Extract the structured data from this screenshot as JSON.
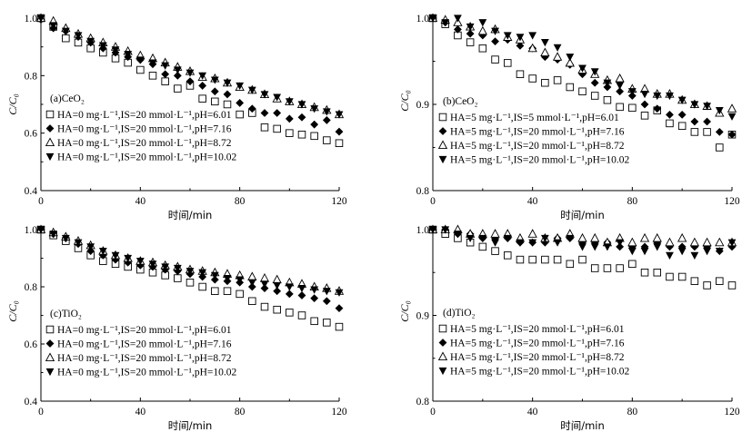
{
  "chart_data": [
    {
      "type": "scatter",
      "panel_label": "(a)CeO₂",
      "xlabel": "时间/min",
      "ylabel": "C/C₀",
      "xlim": [
        0,
        120
      ],
      "ylim": [
        0.4,
        1.0
      ],
      "xticks": [
        0,
        40,
        80,
        120
      ],
      "yticks": [
        0.4,
        0.6,
        0.8,
        1.0
      ],
      "ytick_labels": [
        "0.4",
        "0.6",
        "0.8",
        "1.0"
      ],
      "x": [
        0,
        5,
        10,
        15,
        20,
        25,
        30,
        35,
        40,
        45,
        50,
        55,
        60,
        65,
        70,
        75,
        80,
        85,
        90,
        95,
        100,
        105,
        110,
        115,
        120
      ],
      "series": [
        {
          "name": "HA=0 mg·L⁻¹,IS=20 mmol·L⁻¹,pH=6.01",
          "marker": "square-open",
          "values": [
            1.0,
            0.97,
            0.93,
            0.915,
            0.895,
            0.88,
            0.86,
            0.845,
            0.82,
            0.8,
            0.78,
            0.755,
            0.765,
            0.72,
            0.71,
            0.7,
            0.665,
            0.67,
            0.62,
            0.615,
            0.6,
            0.595,
            0.59,
            0.575,
            0.565
          ]
        },
        {
          "name": "HA=0 mg·L⁻¹,IS=20 mmol·L⁻¹,pH=7.16",
          "marker": "diamond-filled",
          "values": [
            0.995,
            0.965,
            0.955,
            0.935,
            0.915,
            0.895,
            0.88,
            0.865,
            0.855,
            0.84,
            0.805,
            0.8,
            0.78,
            0.765,
            0.745,
            0.735,
            0.705,
            0.685,
            0.67,
            0.67,
            0.65,
            0.655,
            0.63,
            0.645,
            0.605
          ]
        },
        {
          "name": "HA=0 mg·L⁻¹,IS=20 mmol·L⁻¹,pH=8.72",
          "marker": "triangle-up-open",
          "values": [
            1.0,
            0.99,
            0.965,
            0.945,
            0.93,
            0.915,
            0.9,
            0.885,
            0.87,
            0.86,
            0.845,
            0.83,
            0.815,
            0.795,
            0.79,
            0.775,
            0.76,
            0.75,
            0.735,
            0.72,
            0.71,
            0.7,
            0.69,
            0.68,
            0.665
          ]
        },
        {
          "name": "HA=0 mg·L⁻¹,IS=20 mmol·L⁻¹,pH=10.02",
          "marker": "triangle-down-filled",
          "values": [
            1.0,
            0.975,
            0.955,
            0.94,
            0.92,
            0.905,
            0.89,
            0.875,
            0.855,
            0.845,
            0.835,
            0.82,
            0.81,
            0.8,
            0.785,
            0.775,
            0.765,
            0.75,
            0.735,
            0.725,
            0.71,
            0.7,
            0.685,
            0.675,
            0.665
          ]
        }
      ]
    },
    {
      "type": "scatter",
      "panel_label": "(b)CeO₂",
      "xlabel": "时间/min",
      "ylabel": "C/C₀",
      "xlim": [
        0,
        120
      ],
      "ylim": [
        0.8,
        1.0
      ],
      "xticks": [
        0,
        40,
        80,
        120
      ],
      "yticks": [
        0.8,
        0.9,
        1.0
      ],
      "ytick_labels": [
        "0.8",
        "0.9",
        "1.0"
      ],
      "x": [
        0,
        5,
        10,
        15,
        20,
        25,
        30,
        35,
        40,
        45,
        50,
        55,
        60,
        65,
        70,
        75,
        80,
        85,
        90,
        95,
        100,
        105,
        110,
        115,
        120
      ],
      "series": [
        {
          "name": "HA=5 mg·L⁻¹,IS=5 mmol·L⁻¹,pH=6.01",
          "marker": "square-open",
          "values": [
            1.0,
            0.993,
            0.98,
            0.972,
            0.965,
            0.952,
            0.948,
            0.935,
            0.93,
            0.925,
            0.928,
            0.92,
            0.915,
            0.91,
            0.905,
            0.897,
            0.896,
            0.887,
            0.893,
            0.878,
            0.875,
            0.868,
            0.868,
            0.85,
            0.865
          ]
        },
        {
          "name": "HA=5 mg·L⁻¹,IS=20 mmol·L⁻¹,pH=7.16",
          "marker": "diamond-filled",
          "values": [
            1.0,
            0.995,
            0.987,
            0.982,
            0.98,
            0.973,
            0.975,
            0.968,
            0.965,
            0.955,
            0.952,
            0.946,
            0.935,
            0.925,
            0.92,
            0.915,
            0.91,
            0.9,
            0.895,
            0.888,
            0.888,
            0.88,
            0.88,
            0.868,
            0.865
          ]
        },
        {
          "name": "HA=5 mg·L⁻¹,IS=20 mmol·L⁻¹,pH=8.72",
          "marker": "triangle-up-open",
          "values": [
            1.0,
            0.998,
            0.995,
            0.99,
            0.985,
            0.987,
            0.978,
            0.975,
            0.965,
            0.96,
            0.955,
            0.948,
            0.94,
            0.935,
            0.928,
            0.93,
            0.918,
            0.918,
            0.912,
            0.912,
            0.905,
            0.9,
            0.898,
            0.89,
            0.895
          ]
        },
        {
          "name": "HA=5 mg·L⁻¹,IS=20 mmol·L⁻¹,pH=10.02",
          "marker": "triangle-down-filled",
          "values": [
            1.0,
            0.995,
            1.0,
            0.99,
            0.995,
            0.985,
            0.98,
            0.978,
            0.98,
            0.972,
            0.966,
            0.955,
            0.942,
            0.938,
            0.925,
            0.922,
            0.915,
            0.912,
            0.91,
            0.91,
            0.905,
            0.9,
            0.898,
            0.893,
            0.886
          ]
        }
      ]
    },
    {
      "type": "scatter",
      "panel_label": "(c)TiO₂",
      "xlabel": "时间/min",
      "ylabel": "C/C₀",
      "xlim": [
        0,
        120
      ],
      "ylim": [
        0.4,
        1.0
      ],
      "xticks": [
        0,
        40,
        80,
        120
      ],
      "yticks": [
        0.4,
        0.6,
        0.8,
        1.0
      ],
      "ytick_labels": [
        "0.4",
        "0.6",
        "0.8",
        "1.0"
      ],
      "x": [
        0,
        5,
        10,
        15,
        20,
        25,
        30,
        35,
        40,
        45,
        50,
        55,
        60,
        65,
        70,
        75,
        80,
        85,
        90,
        95,
        100,
        105,
        110,
        115,
        120
      ],
      "series": [
        {
          "name": "HA=0 mg·L⁻¹,IS=20 mmol·L⁻¹,pH=6.01",
          "marker": "square-open",
          "values": [
            1.0,
            0.98,
            0.96,
            0.935,
            0.91,
            0.89,
            0.88,
            0.87,
            0.86,
            0.85,
            0.84,
            0.83,
            0.815,
            0.8,
            0.785,
            0.785,
            0.775,
            0.75,
            0.73,
            0.72,
            0.71,
            0.7,
            0.68,
            0.675,
            0.66
          ]
        },
        {
          "name": "HA=0 mg·L⁻¹,IS=20 mmol·L⁻¹,pH=7.16",
          "marker": "diamond-filled",
          "values": [
            1.0,
            0.985,
            0.97,
            0.95,
            0.925,
            0.91,
            0.895,
            0.885,
            0.875,
            0.87,
            0.86,
            0.855,
            0.845,
            0.835,
            0.825,
            0.82,
            0.815,
            0.8,
            0.795,
            0.785,
            0.775,
            0.77,
            0.76,
            0.75,
            0.725
          ]
        },
        {
          "name": "HA=0 mg·L⁻¹,IS=20 mmol·L⁻¹,pH=8.72",
          "marker": "triangle-up-open",
          "values": [
            1.0,
            0.99,
            0.975,
            0.96,
            0.945,
            0.925,
            0.91,
            0.9,
            0.89,
            0.885,
            0.875,
            0.87,
            0.86,
            0.855,
            0.85,
            0.845,
            0.84,
            0.835,
            0.83,
            0.825,
            0.815,
            0.81,
            0.8,
            0.795,
            0.785
          ]
        },
        {
          "name": "HA=0 mg·L⁻¹,IS=20 mmol·L⁻¹,pH=10.02",
          "marker": "triangle-down-filled",
          "values": [
            1.0,
            0.985,
            0.97,
            0.955,
            0.94,
            0.925,
            0.91,
            0.9,
            0.89,
            0.88,
            0.87,
            0.865,
            0.855,
            0.85,
            0.84,
            0.83,
            0.825,
            0.815,
            0.81,
            0.805,
            0.8,
            0.795,
            0.79,
            0.785,
            0.78
          ]
        }
      ]
    },
    {
      "type": "scatter",
      "panel_label": "(d)TiO₂",
      "xlabel": "时间/min",
      "ylabel": "C/C₀",
      "xlim": [
        0,
        120
      ],
      "ylim": [
        0.8,
        1.0
      ],
      "xticks": [
        0,
        40,
        80,
        120
      ],
      "yticks": [
        0.8,
        0.9,
        1.0
      ],
      "ytick_labels": [
        "0.8",
        "0.9",
        "1.0"
      ],
      "x": [
        0,
        5,
        10,
        15,
        20,
        25,
        30,
        35,
        40,
        45,
        50,
        55,
        60,
        65,
        70,
        75,
        80,
        85,
        90,
        95,
        100,
        105,
        110,
        115,
        120
      ],
      "series": [
        {
          "name": "HA=5 mg·L⁻¹,IS=20 mmol·L⁻¹,pH=6.01",
          "marker": "square-open",
          "values": [
            1.0,
            0.995,
            0.99,
            0.985,
            0.98,
            0.975,
            0.97,
            0.965,
            0.965,
            0.965,
            0.965,
            0.96,
            0.965,
            0.955,
            0.955,
            0.955,
            0.96,
            0.95,
            0.95,
            0.945,
            0.945,
            0.94,
            0.935,
            0.94,
            0.935
          ]
        },
        {
          "name": "HA=5 mg·L⁻¹,IS=20 mmol·L⁻¹,pH=7.16",
          "marker": "diamond-filled",
          "values": [
            1.0,
            1.0,
            0.995,
            0.995,
            0.99,
            0.99,
            0.99,
            0.985,
            0.985,
            0.985,
            0.99,
            0.99,
            0.985,
            0.985,
            0.985,
            0.98,
            0.98,
            0.98,
            0.985,
            0.98,
            0.98,
            0.98,
            0.98,
            0.975,
            0.98
          ]
        },
        {
          "name": "HA=5 mg·L⁻¹,IS=20 mmol·L⁻¹,pH=8.72",
          "marker": "triangle-up-open",
          "values": [
            1.0,
            1.0,
            1.0,
            0.995,
            0.995,
            0.995,
            0.995,
            0.99,
            0.995,
            0.99,
            0.99,
            0.995,
            0.99,
            0.99,
            0.985,
            0.99,
            0.985,
            0.99,
            0.99,
            0.985,
            0.99,
            0.985,
            0.985,
            0.985,
            0.985
          ]
        },
        {
          "name": "HA=5 mg·L⁻¹,IS=20 mmol·L⁻¹,pH=10.02",
          "marker": "triangle-down-filled",
          "values": [
            1.0,
            1.0,
            0.995,
            0.99,
            0.99,
            0.985,
            0.99,
            0.985,
            0.985,
            0.99,
            0.985,
            0.99,
            0.98,
            0.98,
            0.98,
            0.985,
            0.975,
            0.975,
            0.98,
            0.97,
            0.975,
            0.97,
            0.975,
            0.975,
            0.985
          ]
        }
      ]
    }
  ]
}
